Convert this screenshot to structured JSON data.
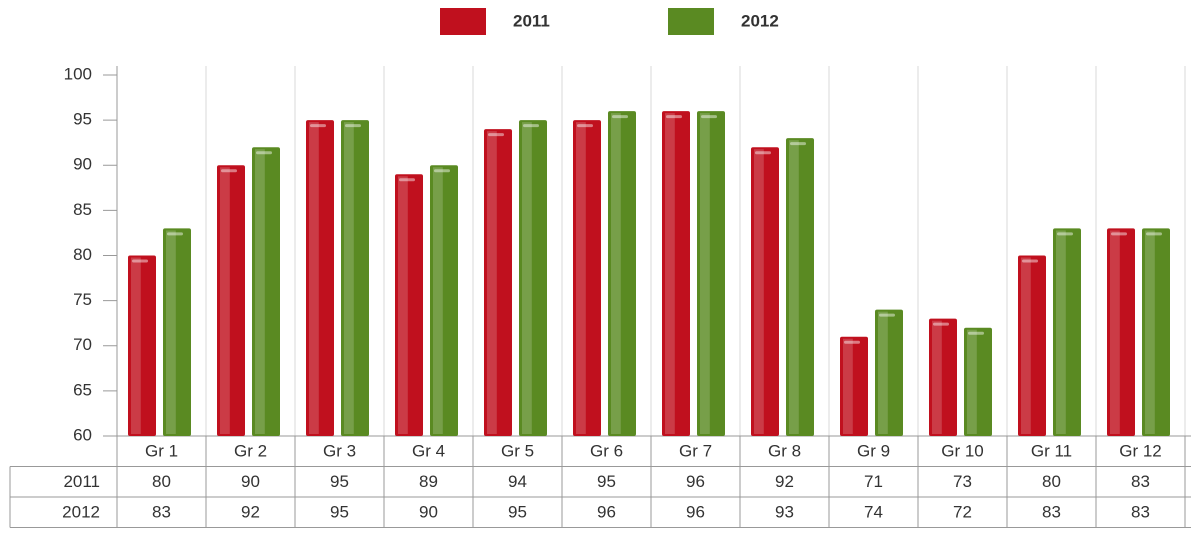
{
  "chart_data": {
    "type": "bar",
    "categories": [
      "Gr 1",
      "Gr 2",
      "Gr 3",
      "Gr 4",
      "Gr 5",
      "Gr 6",
      "Gr 7",
      "Gr 8",
      "Gr 9",
      "Gr 10",
      "Gr 11",
      "Gr 12"
    ],
    "series": [
      {
        "name": "2011",
        "color": "#c0101e",
        "values": [
          80,
          90,
          95,
          89,
          94,
          95,
          96,
          92,
          71,
          73,
          80,
          83
        ]
      },
      {
        "name": "2012",
        "color": "#5a8a22",
        "values": [
          83,
          92,
          95,
          90,
          95,
          96,
          96,
          93,
          74,
          72,
          83,
          83
        ]
      }
    ],
    "ylim": [
      60,
      100
    ],
    "yticks": [
      60,
      65,
      70,
      75,
      80,
      85,
      90,
      95,
      100
    ],
    "grid": true,
    "legend": "top"
  }
}
